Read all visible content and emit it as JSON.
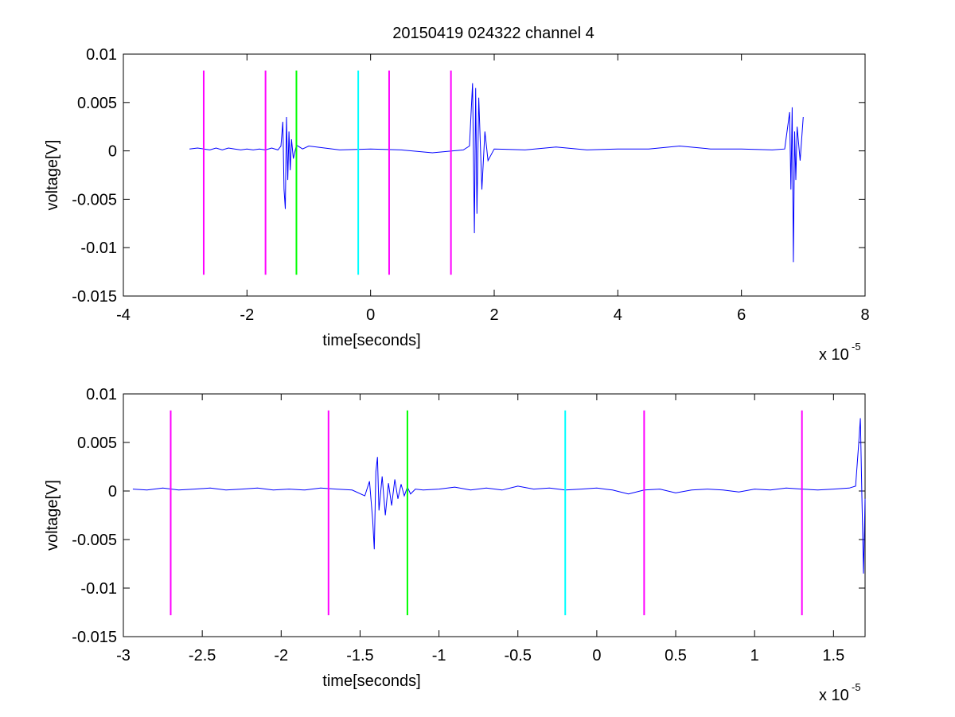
{
  "title": "20150419 024322 channel 4",
  "colors": {
    "signal": "#0000ff",
    "magenta": "#ff00ff",
    "green": "#00ff00",
    "cyan": "#00ffff"
  },
  "chart_data": [
    {
      "type": "line",
      "xlabel": "time[seconds]",
      "ylabel": "voltage[V]",
      "x_scale_label": "x 10",
      "x_scale_exponent": "-5",
      "xlim": [
        -4,
        8
      ],
      "ylim": [
        -0.015,
        0.01
      ],
      "xticks": [
        -4,
        -2,
        0,
        2,
        4,
        6,
        8
      ],
      "xtick_labels": [
        "-4",
        "-2",
        "0",
        "2",
        "4",
        "6",
        "8"
      ],
      "yticks": [
        0.01,
        0.005,
        0,
        -0.005,
        -0.01,
        -0.015
      ],
      "ytick_labels": [
        "0.01",
        "0.005",
        "0",
        "-0.005",
        "-0.01",
        "-0.015"
      ],
      "grid": false,
      "series": [
        {
          "color": "#0000ff",
          "x": [
            -2.93,
            -2.8,
            -2.7,
            -2.6,
            -2.5,
            -2.4,
            -2.3,
            -2.2,
            -2.1,
            -2.0,
            -1.9,
            -1.8,
            -1.7,
            -1.6,
            -1.5,
            -1.45,
            -1.42,
            -1.4,
            -1.38,
            -1.36,
            -1.34,
            -1.32,
            -1.3,
            -1.28,
            -1.25,
            -1.2,
            -1.1,
            -1.0,
            -0.5,
            0.0,
            0.5,
            1.0,
            1.5,
            1.6,
            1.65,
            1.68,
            1.7,
            1.72,
            1.75,
            1.8,
            1.85,
            1.9,
            2.0,
            2.5,
            3.0,
            3.5,
            4.0,
            4.5,
            5.0,
            5.5,
            6.0,
            6.5,
            6.7,
            6.78,
            6.8,
            6.82,
            6.84,
            6.86,
            6.88,
            6.9,
            6.95,
            7.0
          ],
          "y": [
            0.0002,
            0.0003,
            0.0002,
            0.0001,
            0.0003,
            0.0001,
            0.0003,
            0.0002,
            0.0001,
            0.0002,
            0.0001,
            0.0002,
            0.0001,
            0.0003,
            0.0001,
            0.0005,
            0.003,
            -0.004,
            -0.006,
            0.0035,
            -0.003,
            0.002,
            -0.002,
            0.0012,
            -0.0008,
            0.0006,
            0.0002,
            0.0005,
            0.0001,
            0.0002,
            0.0001,
            -0.0002,
            0.0001,
            0.0005,
            0.007,
            -0.0085,
            0.0065,
            -0.0065,
            0.0055,
            -0.004,
            0.002,
            -0.001,
            0.0002,
            0.0001,
            0.0004,
            0.0001,
            0.0002,
            0.0002,
            0.0005,
            0.0002,
            0.0002,
            0.0001,
            0.0002,
            0.004,
            -0.004,
            0.0045,
            -0.0115,
            0.002,
            -0.003,
            0.0025,
            -0.001,
            0.0035
          ]
        }
      ],
      "markers": [
        {
          "x": -2.7,
          "color": "#ff00ff"
        },
        {
          "x": -1.7,
          "color": "#ff00ff"
        },
        {
          "x": -1.2,
          "color": "#00ff00"
        },
        {
          "x": -0.2,
          "color": "#00ffff"
        },
        {
          "x": 0.3,
          "color": "#ff00ff"
        },
        {
          "x": 1.3,
          "color": "#ff00ff"
        }
      ],
      "marker_ylim": [
        -0.0128,
        0.0083
      ]
    },
    {
      "type": "line",
      "xlabel": "time[seconds]",
      "ylabel": "voltage[V]",
      "x_scale_label": "x 10",
      "x_scale_exponent": "-5",
      "xlim": [
        -3.0,
        1.7
      ],
      "ylim": [
        -0.015,
        0.01
      ],
      "xticks": [
        -3,
        -2.5,
        -2,
        -1.5,
        -1,
        -0.5,
        0,
        0.5,
        1,
        1.5
      ],
      "xtick_labels": [
        "-3",
        "-2.5",
        "-2",
        "-1.5",
        "-1",
        "-0.5",
        "0",
        "0.5",
        "1",
        "1.5"
      ],
      "yticks": [
        0.01,
        0.005,
        0,
        -0.005,
        -0.01,
        -0.015
      ],
      "ytick_labels": [
        "0.01",
        "0.005",
        "0",
        "-0.005",
        "-0.01",
        "-0.015"
      ],
      "grid": false,
      "series": [
        {
          "color": "#0000ff",
          "x": [
            -2.94,
            -2.85,
            -2.75,
            -2.65,
            -2.55,
            -2.45,
            -2.35,
            -2.25,
            -2.15,
            -2.05,
            -1.95,
            -1.85,
            -1.75,
            -1.65,
            -1.55,
            -1.47,
            -1.44,
            -1.42,
            -1.41,
            -1.4,
            -1.39,
            -1.38,
            -1.36,
            -1.34,
            -1.32,
            -1.3,
            -1.28,
            -1.26,
            -1.24,
            -1.22,
            -1.2,
            -1.18,
            -1.15,
            -1.1,
            -1.0,
            -0.9,
            -0.8,
            -0.7,
            -0.6,
            -0.5,
            -0.4,
            -0.3,
            -0.2,
            -0.1,
            0.0,
            0.1,
            0.2,
            0.3,
            0.4,
            0.5,
            0.6,
            0.7,
            0.8,
            0.9,
            1.0,
            1.1,
            1.2,
            1.3,
            1.4,
            1.5,
            1.6,
            1.64,
            1.66,
            1.67,
            1.68,
            1.69,
            1.7
          ],
          "y": [
            0.0002,
            0.0001,
            0.0003,
            0.0001,
            0.0002,
            0.0003,
            0.0001,
            0.0002,
            0.0003,
            0.0001,
            0.0002,
            0.0001,
            0.0003,
            0.0002,
            0.0001,
            -0.0005,
            0.001,
            -0.003,
            -0.006,
            0.002,
            0.0035,
            -0.002,
            0.0015,
            -0.0025,
            0.0008,
            -0.0015,
            0.0012,
            -0.0008,
            0.0007,
            -0.0005,
            0.0004,
            -0.0003,
            0.0002,
            0.0001,
            0.0002,
            0.0004,
            0.0001,
            0.0003,
            0.0001,
            0.0005,
            0.0002,
            0.0003,
            0.0001,
            0.0002,
            0.0003,
            0.0001,
            -0.0003,
            0.0001,
            0.0002,
            -0.0002,
            0.0001,
            0.0002,
            0.0001,
            -0.0001,
            0.0002,
            0.0001,
            0.0003,
            0.0002,
            0.0001,
            0.0002,
            0.0003,
            0.0005,
            0.005,
            0.0075,
            -0.0005,
            -0.0085,
            -0.0008
          ]
        }
      ],
      "markers": [
        {
          "x": -2.7,
          "color": "#ff00ff"
        },
        {
          "x": -1.7,
          "color": "#ff00ff"
        },
        {
          "x": -1.2,
          "color": "#00ff00"
        },
        {
          "x": -0.2,
          "color": "#00ffff"
        },
        {
          "x": 0.3,
          "color": "#ff00ff"
        },
        {
          "x": 1.3,
          "color": "#ff00ff"
        }
      ],
      "marker_ylim": [
        -0.0128,
        0.0083
      ]
    }
  ]
}
